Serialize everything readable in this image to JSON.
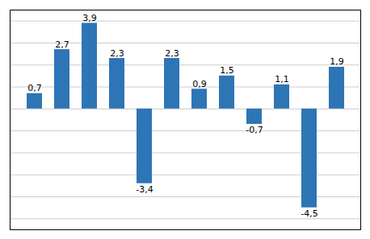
{
  "chart_data": {
    "type": "bar",
    "categories": [
      null,
      null,
      null,
      null,
      null,
      null,
      null,
      null,
      null,
      null,
      null,
      null
    ],
    "values": [
      0.7,
      2.7,
      3.9,
      2.3,
      -3.4,
      2.3,
      0.9,
      1.5,
      -0.7,
      1.1,
      -4.5,
      1.9
    ],
    "value_labels": [
      "0,7",
      "2,7",
      "3,9",
      "2,3",
      "-3,4",
      "2,3",
      "0,9",
      "1,5",
      "-0,7",
      "1,1",
      "-4,5",
      "1,9"
    ],
    "data_labels": true,
    "color": "#2E75B6",
    "ylim": [
      -5.5,
      4.5
    ],
    "yticks": [
      -5,
      -4,
      -3,
      -2,
      -1,
      0,
      1,
      2,
      3,
      4
    ],
    "grid": true,
    "tick_labels": false
  }
}
